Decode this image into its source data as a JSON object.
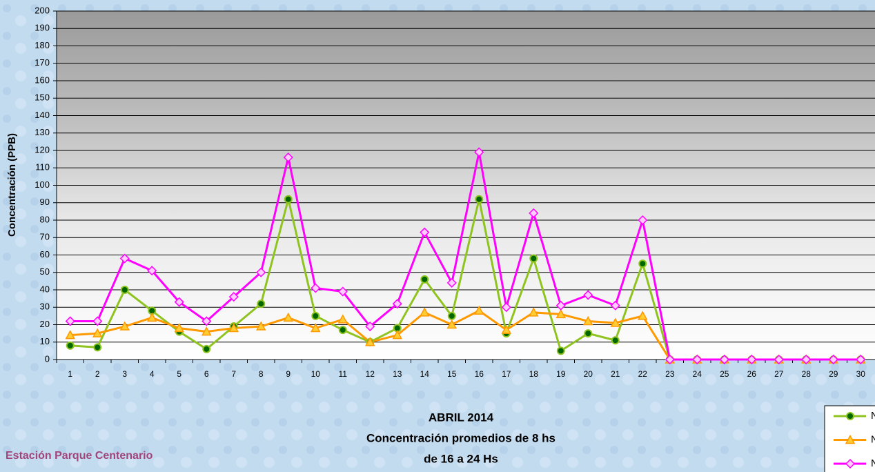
{
  "chart_data": {
    "type": "line",
    "y_label": "Concentración  (PPB)",
    "title": "ABRIL 2014",
    "subtitle": "Concentración promedios de 8 hs",
    "subtitle2": "de 16 a 24 Hs",
    "station": "Estación Parque Centenario",
    "categories": [
      "1",
      "2",
      "3",
      "4",
      "5",
      "6",
      "7",
      "8",
      "9",
      "10",
      "11",
      "12",
      "13",
      "14",
      "15",
      "16",
      "17",
      "18",
      "19",
      "20",
      "21",
      "22",
      "23",
      "24",
      "25",
      "26",
      "27",
      "28",
      "29",
      "30"
    ],
    "series": [
      {
        "name": "N",
        "color": "#8fc31f",
        "marker": "circle",
        "values": [
          8,
          7,
          40,
          28,
          16,
          6,
          19,
          32,
          92,
          25,
          17,
          10,
          18,
          46,
          25,
          92,
          15,
          58,
          5,
          15,
          11,
          55,
          0,
          0,
          0,
          0,
          0,
          0,
          0,
          0
        ]
      },
      {
        "name": "N",
        "color": "#ff9900",
        "marker": "triangle",
        "values": [
          14,
          15,
          19,
          24,
          18,
          16,
          18,
          19,
          24,
          18,
          23,
          10,
          14,
          27,
          20,
          28,
          17,
          27,
          26,
          22,
          21,
          25,
          0,
          0,
          0,
          0,
          0,
          0,
          0,
          0
        ]
      },
      {
        "name": "N",
        "color": "#ff00ff",
        "marker": "diamond",
        "values": [
          22,
          22,
          58,
          51,
          33,
          22,
          36,
          50,
          116,
          41,
          39,
          19,
          32,
          73,
          44,
          119,
          30,
          84,
          31,
          37,
          31,
          80,
          0,
          0,
          0,
          0,
          0,
          0,
          0,
          0
        ]
      }
    ],
    "ylim": [
      0,
      200
    ],
    "yticks": [
      0,
      10,
      20,
      30,
      40,
      50,
      60,
      70,
      80,
      90,
      100,
      110,
      120,
      130,
      140,
      150,
      160,
      170,
      180,
      190,
      200
    ],
    "grid": true
  }
}
